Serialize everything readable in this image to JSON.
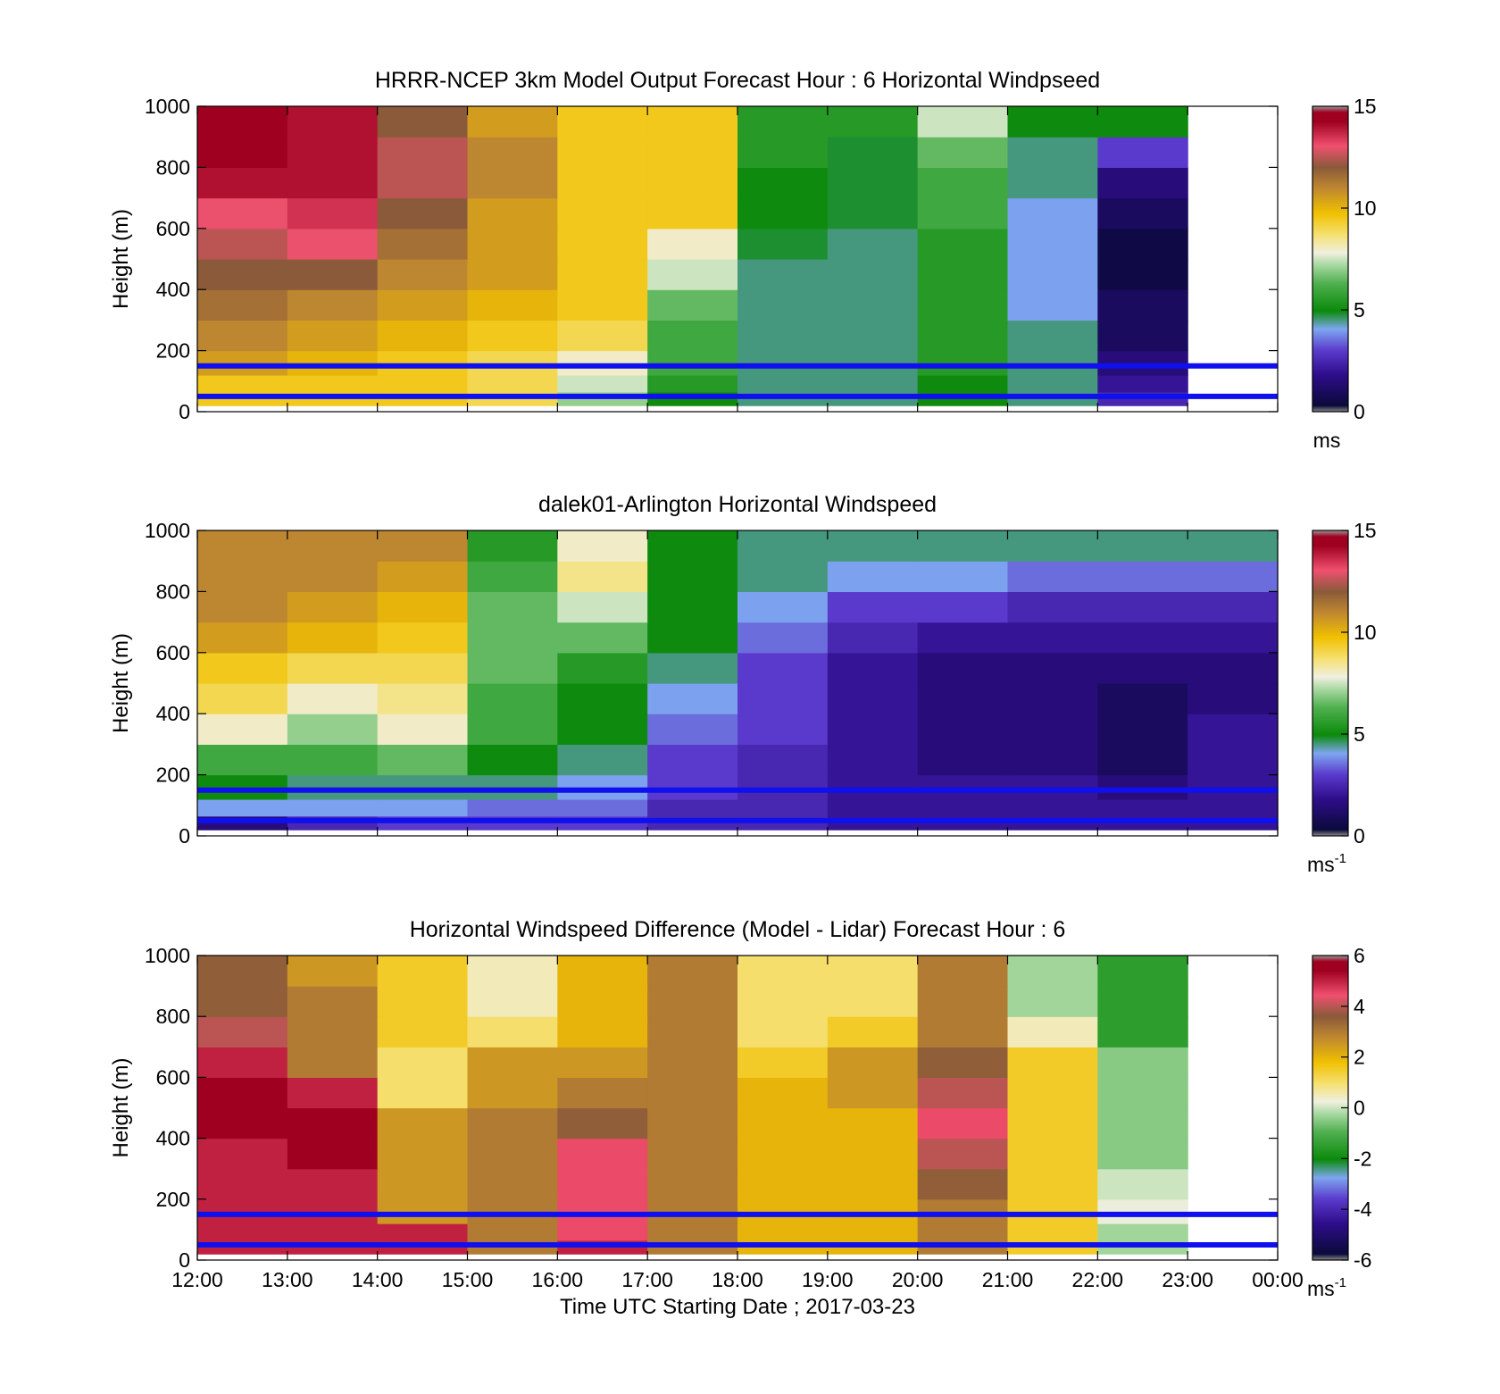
{
  "figure": {
    "xlabel": "Time UTC  Starting Date ; 2017-03-23",
    "xticks": [
      "12:00",
      "13:00",
      "14:00",
      "15:00",
      "16:00",
      "17:00",
      "18:00",
      "19:00",
      "20:00",
      "21:00",
      "22:00",
      "23:00",
      "00:00"
    ],
    "reference_heights_m": [
      150,
      50
    ],
    "reference_line_color": "#1010ee"
  },
  "chart_data": [
    {
      "type": "heatmap",
      "title": "HRRR-NCEP 3km Model Output   Forecast Hour : 6 Horizontal Windpseed",
      "xlabel": "",
      "ylabel": "Height (m)",
      "ylim": [
        0,
        1000
      ],
      "yticks": [
        "0",
        "200",
        "400",
        "600",
        "800",
        "1000"
      ],
      "colorbar": {
        "ticks": [
          "0",
          "5",
          "10",
          "15"
        ],
        "range": [
          0,
          15
        ],
        "unit": "ms",
        "unit_sup": ""
      },
      "x": [
        "12:00",
        "13:00",
        "14:00",
        "15:00",
        "16:00",
        "17:00",
        "18:00",
        "19:00",
        "20:00",
        "21:00",
        "22:00"
      ],
      "y": [
        40,
        90,
        150,
        250,
        350,
        450,
        550,
        650,
        750,
        850,
        950
      ],
      "z_units": "ms",
      "values": [
        [
          9.5,
          9.5,
          9.5,
          9.0,
          7.0,
          5.0,
          4.5,
          4.5,
          5.0,
          4.5,
          2.5
        ],
        [
          9.5,
          9.5,
          9.5,
          9.0,
          7.5,
          5.5,
          4.5,
          4.5,
          5.0,
          4.5,
          2.0
        ],
        [
          10.5,
          10.0,
          9.5,
          9.0,
          8.0,
          6.0,
          4.5,
          4.5,
          5.5,
          4.5,
          1.5
        ],
        [
          11.0,
          10.5,
          10.0,
          9.5,
          9.0,
          6.0,
          4.5,
          4.5,
          5.5,
          4.5,
          1.0
        ],
        [
          11.5,
          11.0,
          10.5,
          10.0,
          9.5,
          6.5,
          4.5,
          4.5,
          5.5,
          4.0,
          1.0
        ],
        [
          12.0,
          12.0,
          11.0,
          10.5,
          9.5,
          7.5,
          4.5,
          4.5,
          5.5,
          4.0,
          0.5
        ],
        [
          12.5,
          13.0,
          11.5,
          10.5,
          9.5,
          8.0,
          4.8,
          4.5,
          5.5,
          4.0,
          0.5
        ],
        [
          13.0,
          13.5,
          12.0,
          10.5,
          9.5,
          9.5,
          5.0,
          4.8,
          6.0,
          4.0,
          1.0
        ],
        [
          14.0,
          14.0,
          12.5,
          11.0,
          9.5,
          9.5,
          5.0,
          4.8,
          6.0,
          4.5,
          1.5
        ],
        [
          14.5,
          14.0,
          12.5,
          11.0,
          9.5,
          9.5,
          5.5,
          4.8,
          6.5,
          4.5,
          3.0
        ],
        [
          14.5,
          14.0,
          12.0,
          10.5,
          9.5,
          9.5,
          5.5,
          5.5,
          7.5,
          5.0,
          5.0
        ]
      ]
    },
    {
      "type": "heatmap",
      "title": "dalek01-Arlington  Horizontal Windspeed",
      "xlabel": "",
      "ylabel": "Height (m)",
      "ylim": [
        0,
        1000
      ],
      "yticks": [
        "0",
        "200",
        "400",
        "600",
        "800",
        "1000"
      ],
      "colorbar": {
        "ticks": [
          "0",
          "5",
          "10",
          "15"
        ],
        "range": [
          0,
          15
        ],
        "unit": "ms",
        "unit_sup": "-1"
      },
      "x": [
        "12:00",
        "13:00",
        "14:00",
        "15:00",
        "16:00",
        "17:00",
        "18:00",
        "19:00",
        "20:00",
        "21:00",
        "22:00",
        "23:00"
      ],
      "y": [
        40,
        90,
        150,
        250,
        350,
        450,
        550,
        650,
        750,
        850,
        950
      ],
      "z_units": "ms-1",
      "values": [
        [
          1.5,
          2.5,
          3.0,
          3.0,
          3.0,
          2.5,
          2.5,
          2.0,
          2.0,
          2.0,
          2.0,
          2.0
        ],
        [
          4.0,
          4.0,
          4.0,
          3.5,
          3.5,
          2.5,
          2.5,
          2.0,
          2.0,
          2.0,
          2.0,
          2.0
        ],
        [
          5.0,
          4.5,
          4.5,
          4.5,
          4.0,
          3.0,
          2.5,
          2.0,
          2.0,
          2.0,
          1.5,
          2.0
        ],
        [
          6.0,
          6.0,
          6.5,
          5.0,
          4.5,
          3.0,
          2.5,
          2.0,
          1.5,
          1.5,
          1.0,
          2.0
        ],
        [
          8.0,
          7.0,
          8.0,
          6.0,
          5.0,
          3.5,
          3.0,
          2.0,
          1.5,
          1.5,
          1.0,
          2.0
        ],
        [
          9.0,
          8.0,
          8.5,
          6.0,
          5.0,
          4.0,
          3.0,
          2.0,
          1.5,
          1.5,
          1.0,
          1.5
        ],
        [
          9.5,
          9.0,
          9.0,
          6.5,
          5.5,
          4.5,
          3.0,
          2.0,
          1.5,
          1.5,
          1.5,
          1.5
        ],
        [
          10.5,
          10.0,
          9.5,
          6.5,
          6.5,
          5.0,
          3.5,
          2.5,
          2.0,
          2.0,
          2.0,
          2.0
        ],
        [
          11.0,
          10.5,
          10.0,
          6.5,
          7.5,
          5.0,
          4.0,
          3.0,
          3.0,
          2.5,
          2.5,
          2.5
        ],
        [
          11.0,
          11.0,
          10.5,
          6.0,
          8.5,
          5.0,
          4.5,
          4.0,
          4.0,
          3.5,
          3.5,
          3.5
        ],
        [
          11.0,
          11.0,
          11.0,
          5.5,
          8.0,
          5.0,
          4.5,
          4.5,
          4.5,
          4.5,
          4.5,
          4.5
        ]
      ]
    },
    {
      "type": "heatmap",
      "title": "Horizontal Windspeed Difference (Model - Lidar) Forecast Hour : 6",
      "xlabel": "Time UTC  Starting Date ; 2017-03-23",
      "ylabel": "Height (m)",
      "ylim": [
        0,
        1000
      ],
      "yticks": [
        "0",
        "200",
        "400",
        "600",
        "800",
        "1000"
      ],
      "colorbar": {
        "ticks": [
          "-6",
          "-4",
          "-2",
          "0",
          "2",
          "4",
          "6"
        ],
        "range": [
          -6,
          6
        ],
        "unit": "ms",
        "unit_sup": "-1"
      },
      "x": [
        "12:00",
        "13:00",
        "14:00",
        "15:00",
        "16:00",
        "17:00",
        "18:00",
        "19:00",
        "20:00",
        "21:00",
        "22:00"
      ],
      "y": [
        40,
        90,
        150,
        250,
        350,
        450,
        550,
        650,
        750,
        850,
        950
      ],
      "z_units": "ms-1",
      "values": [
        [
          5.0,
          5.0,
          5.0,
          3.0,
          5.0,
          3.0,
          2.0,
          2.0,
          3.0,
          1.5,
          -0.3
        ],
        [
          5.0,
          5.0,
          5.0,
          3.0,
          4.5,
          3.0,
          2.0,
          2.0,
          3.0,
          1.5,
          -0.3
        ],
        [
          5.0,
          5.0,
          2.5,
          3.0,
          4.5,
          3.0,
          2.0,
          2.0,
          3.0,
          1.5,
          0.2
        ],
        [
          5.0,
          5.0,
          2.5,
          3.0,
          4.5,
          3.0,
          2.0,
          2.0,
          3.5,
          1.5,
          0.0
        ],
        [
          5.0,
          5.5,
          2.5,
          3.0,
          4.5,
          3.0,
          2.0,
          2.0,
          4.0,
          1.5,
          -0.5
        ],
        [
          5.5,
          5.5,
          2.5,
          3.0,
          3.5,
          3.0,
          2.0,
          2.0,
          4.5,
          1.5,
          -0.5
        ],
        [
          5.5,
          5.0,
          1.0,
          2.5,
          3.0,
          3.0,
          2.0,
          2.5,
          4.0,
          1.5,
          -0.5
        ],
        [
          5.0,
          3.0,
          1.0,
          2.5,
          2.5,
          3.0,
          1.5,
          2.5,
          3.5,
          1.5,
          -0.5
        ],
        [
          4.0,
          3.0,
          1.5,
          1.0,
          2.0,
          3.0,
          1.0,
          1.5,
          3.0,
          0.5,
          -1.5
        ],
        [
          3.5,
          3.0,
          1.5,
          0.5,
          2.0,
          3.0,
          1.0,
          1.0,
          3.0,
          -0.3,
          -1.5
        ],
        [
          3.5,
          2.5,
          1.5,
          0.5,
          2.0,
          3.0,
          1.0,
          1.0,
          3.0,
          -0.3,
          -1.5
        ]
      ]
    }
  ]
}
